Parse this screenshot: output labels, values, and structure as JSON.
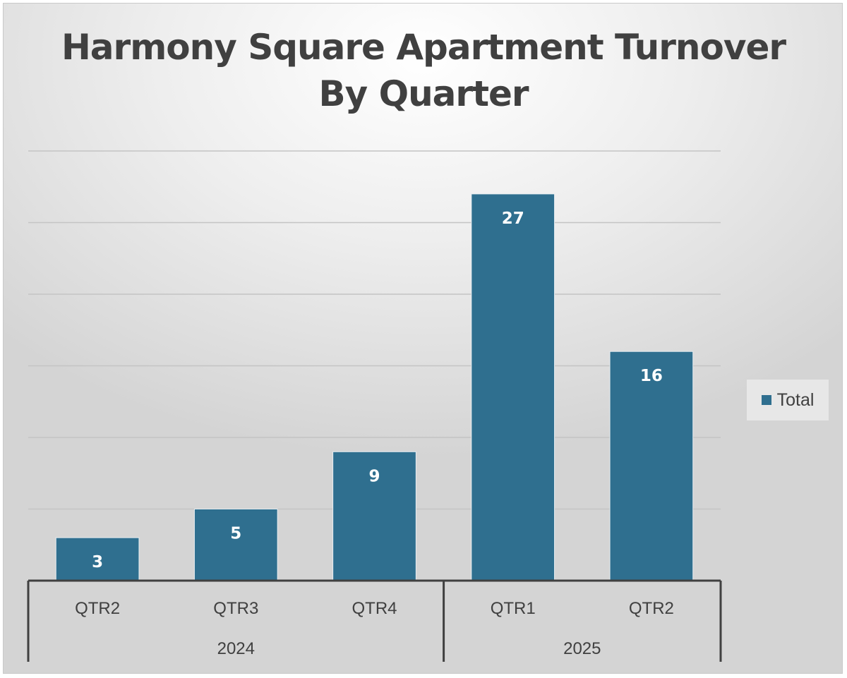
{
  "chart_data": {
    "type": "bar",
    "title_lines": [
      "Harmony Square Apartment Turnover",
      "By Quarter"
    ],
    "groups": [
      {
        "label": "2024",
        "categories": [
          "QTR2",
          "QTR3",
          "QTR4"
        ]
      },
      {
        "label": "2025",
        "categories": [
          "QTR1",
          "QTR2"
        ]
      }
    ],
    "categories": [
      "QTR2",
      "QTR3",
      "QTR4",
      "QTR1",
      "QTR2"
    ],
    "series": [
      {
        "name": "Total",
        "values": [
          3,
          5,
          9,
          27,
          16
        ],
        "color": "#2f6f8f"
      }
    ],
    "data_labels": [
      "3",
      "5",
      "9",
      "27",
      "16"
    ],
    "ylim": [
      0,
      30
    ],
    "grid": true,
    "y_tick_labels_shown": false,
    "legend_position": "right"
  }
}
